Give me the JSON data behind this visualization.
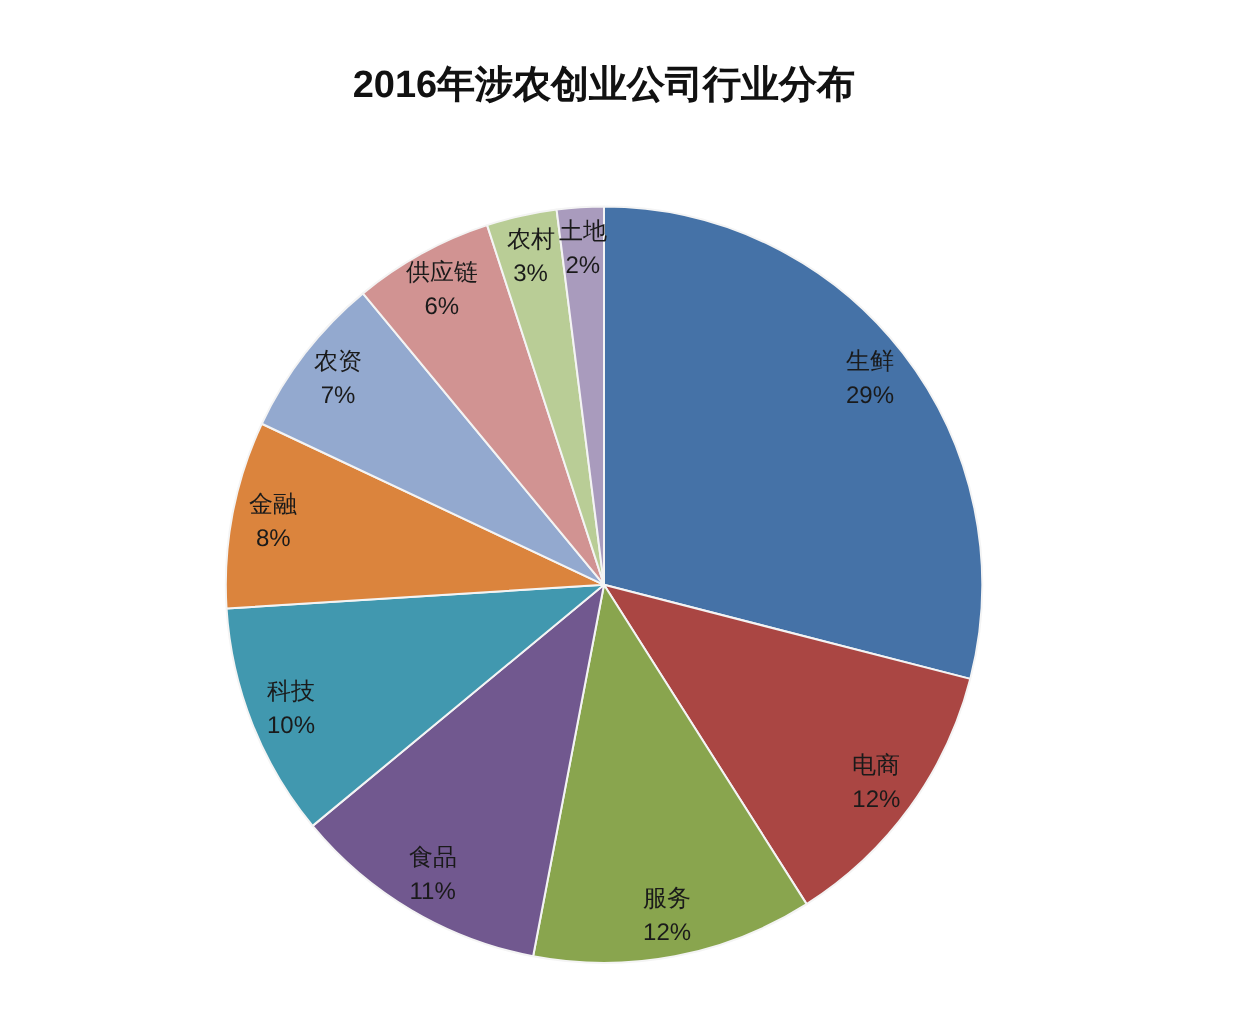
{
  "chart_data": {
    "type": "pie",
    "title": "2016年涉农创业公司行业分布",
    "categories": [
      "生鲜",
      "电商",
      "服务",
      "食品",
      "科技",
      "金融",
      "农资",
      "供应链",
      "农村",
      "土地"
    ],
    "values": [
      29,
      12,
      12,
      11,
      10,
      8,
      7,
      6,
      3,
      2
    ],
    "value_labels": [
      "29%",
      "12%",
      "12%",
      "11%",
      "10%",
      "8%",
      "7%",
      "6%",
      "3%",
      "2%"
    ],
    "colors": [
      "#4572a7",
      "#aa4643",
      "#89a54e",
      "#71588f",
      "#4198af",
      "#db843d",
      "#93a9cf",
      "#d19392",
      "#b9cd96",
      "#a99bbd"
    ]
  }
}
